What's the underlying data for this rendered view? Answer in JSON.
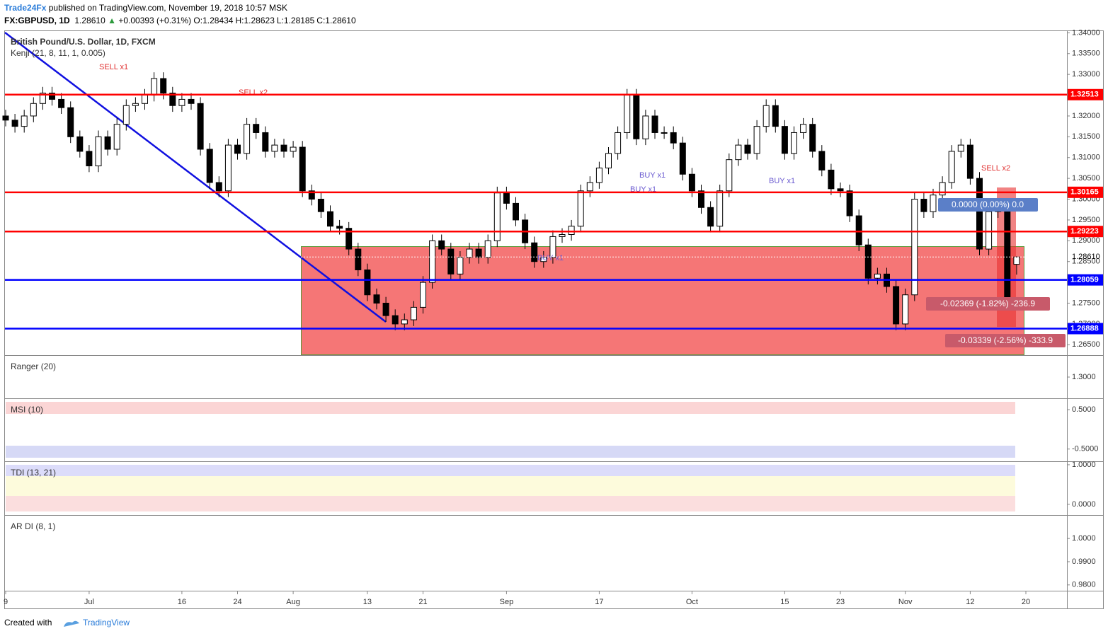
{
  "chart_data": {
    "type": "candlestick",
    "publisher": "Trade24Fx",
    "published": "published on TradingView.com, November 19, 2018 10:57 MSK",
    "symbol": "FX:GBPUSD, 1D",
    "last": "1.28610",
    "change": "+0.00393 (+0.31%)",
    "ohlc_header": [
      {
        "label": "O:",
        "value": "1.28434"
      },
      {
        "label": "H:",
        "value": "1.28623"
      },
      {
        "label": "L:",
        "value": "1.28185"
      },
      {
        "label": "C:",
        "value": "1.28610"
      }
    ],
    "title": "British Pound/U.S. Dollar, 1D, FXCM",
    "indicator": "Kenji (21, 8, 11, 1, 0.005)",
    "signals": [
      "SELL x1",
      "SELL x2",
      "BUY x1",
      "BUY x1",
      "BUY x1",
      "BUY x1",
      "SELL x2"
    ],
    "measures": [
      "0.0000 (0.00%) 0.0",
      "-0.02369 (-1.82%) -236.9",
      "-0.03339 (-2.56%) -333.9"
    ],
    "footer": "Created with",
    "brand": "TradingView",
    "ylim": [
      1.2625,
      1.3404
    ],
    "yticks": [
      {
        "value": 1.34,
        "label": "1.34000"
      },
      {
        "value": 1.335,
        "label": "1.33500"
      },
      {
        "value": 1.33,
        "label": "1.33000"
      },
      {
        "value": 1.325,
        "label": "1.32500"
      },
      {
        "value": 1.32,
        "label": "1.32000"
      },
      {
        "value": 1.315,
        "label": "1.31500"
      },
      {
        "value": 1.31,
        "label": "1.31000"
      },
      {
        "value": 1.305,
        "label": "1.30500"
      },
      {
        "value": 1.3,
        "label": "1.30000"
      },
      {
        "value": 1.295,
        "label": "1.29500"
      },
      {
        "value": 1.29,
        "label": "1.29000"
      },
      {
        "value": 1.285,
        "label": "1.28500"
      },
      {
        "value": 1.28,
        "label": "1.28000"
      },
      {
        "value": 1.275,
        "label": "1.27500"
      },
      {
        "value": 1.27,
        "label": "1.27000"
      },
      {
        "value": 1.265,
        "label": "1.26500"
      }
    ],
    "levels": [
      {
        "value": 1.32513,
        "label": "1.32513",
        "color": "#ff0000"
      },
      {
        "value": 1.30165,
        "label": "1.30165",
        "color": "#ff0000"
      },
      {
        "value": 1.29223,
        "label": "1.29223",
        "color": "#ff0000"
      },
      {
        "value": 1.28059,
        "label": "1.28059",
        "color": "#0000ff"
      },
      {
        "value": 1.26888,
        "label": "1.26888",
        "color": "#0000ff"
      }
    ],
    "last_price": {
      "value": 1.2861,
      "label": "1.28610"
    },
    "categories": [
      "9",
      null,
      null,
      null,
      null,
      null,
      null,
      null,
      null,
      "Jul",
      null,
      null,
      null,
      null,
      null,
      null,
      null,
      null,
      null,
      "16",
      null,
      null,
      null,
      null,
      null,
      "24",
      null,
      null,
      null,
      null,
      null,
      "Aug",
      null,
      null,
      null,
      null,
      null,
      null,
      null,
      "13",
      null,
      null,
      null,
      null,
      null,
      "21",
      null,
      null,
      null,
      null,
      null,
      null,
      null,
      null,
      "Sep",
      null,
      null,
      null,
      null,
      null,
      null,
      null,
      null,
      null,
      "17",
      null,
      null,
      null,
      null,
      null,
      null,
      null,
      null,
      null,
      "Oct",
      null,
      null,
      null,
      null,
      null,
      null,
      null,
      null,
      null,
      "15",
      null,
      null,
      null,
      null,
      null,
      "23",
      null,
      null,
      null,
      null,
      null,
      null,
      "Nov",
      null,
      null,
      null,
      null,
      null,
      null,
      "12",
      null,
      null,
      null,
      null,
      null,
      "20"
    ],
    "ohlc": [
      [
        1.32,
        1.3215,
        1.3175,
        1.319
      ],
      [
        1.319,
        1.3205,
        1.316,
        1.3175
      ],
      [
        1.3175,
        1.3215,
        1.316,
        1.32
      ],
      [
        1.32,
        1.3245,
        1.3185,
        1.323
      ],
      [
        1.323,
        1.327,
        1.3215,
        1.3255
      ],
      [
        1.3255,
        1.327,
        1.3225,
        1.324
      ],
      [
        1.324,
        1.3255,
        1.3205,
        1.322
      ],
      [
        1.322,
        1.3235,
        1.3135,
        1.315
      ],
      [
        1.315,
        1.3165,
        1.31,
        1.3115
      ],
      [
        1.3115,
        1.313,
        1.3065,
        1.308
      ],
      [
        1.308,
        1.3165,
        1.3065,
        1.315
      ],
      [
        1.315,
        1.3165,
        1.3105,
        1.312
      ],
      [
        1.312,
        1.3195,
        1.3105,
        1.318
      ],
      [
        1.318,
        1.324,
        1.3165,
        1.3225
      ],
      [
        1.3225,
        1.3245,
        1.321,
        1.323
      ],
      [
        1.323,
        1.3265,
        1.3215,
        1.325
      ],
      [
        1.325,
        1.3305,
        1.3235,
        1.329
      ],
      [
        1.329,
        1.3305,
        1.324,
        1.3255
      ],
      [
        1.3255,
        1.327,
        1.321,
        1.3225
      ],
      [
        1.3225,
        1.3255,
        1.321,
        1.324
      ],
      [
        1.324,
        1.3255,
        1.3215,
        1.323
      ],
      [
        1.323,
        1.3245,
        1.3105,
        1.312
      ],
      [
        1.312,
        1.3135,
        1.3025,
        1.304
      ],
      [
        1.304,
        1.3055,
        1.3005,
        1.302
      ],
      [
        1.302,
        1.3145,
        1.3005,
        1.313
      ],
      [
        1.313,
        1.3145,
        1.3095,
        1.311
      ],
      [
        1.311,
        1.3195,
        1.3095,
        1.318
      ],
      [
        1.318,
        1.3195,
        1.3145,
        1.316
      ],
      [
        1.316,
        1.3175,
        1.31,
        1.3115
      ],
      [
        1.3115,
        1.3145,
        1.31,
        1.313
      ],
      [
        1.313,
        1.3145,
        1.31,
        1.3115
      ],
      [
        1.3115,
        1.314,
        1.31,
        1.3125
      ],
      [
        1.3125,
        1.314,
        1.3005,
        1.302
      ],
      [
        1.302,
        1.3035,
        1.2985,
        1.3
      ],
      [
        1.3,
        1.3015,
        1.2955,
        1.297
      ],
      [
        1.297,
        1.2985,
        1.292,
        1.2935
      ],
      [
        1.2935,
        1.295,
        1.2915,
        1.293
      ],
      [
        1.293,
        1.2945,
        1.2865,
        1.288
      ],
      [
        1.288,
        1.2895,
        1.2815,
        1.283
      ],
      [
        1.283,
        1.2845,
        1.2755,
        1.277
      ],
      [
        1.277,
        1.2785,
        1.2735,
        1.275
      ],
      [
        1.275,
        1.2765,
        1.2705,
        1.272
      ],
      [
        1.272,
        1.2735,
        1.2685,
        1.27
      ],
      [
        1.27,
        1.2725,
        1.2685,
        1.271
      ],
      [
        1.271,
        1.2755,
        1.2695,
        1.274
      ],
      [
        1.274,
        1.2815,
        1.2725,
        1.28
      ],
      [
        1.28,
        1.2915,
        1.2785,
        1.29
      ],
      [
        1.29,
        1.2915,
        1.2865,
        1.288
      ],
      [
        1.288,
        1.2895,
        1.2805,
        1.282
      ],
      [
        1.282,
        1.2875,
        1.2805,
        1.286
      ],
      [
        1.286,
        1.2895,
        1.2845,
        1.288
      ],
      [
        1.288,
        1.2895,
        1.2845,
        1.286
      ],
      [
        1.286,
        1.2915,
        1.2845,
        1.29
      ],
      [
        1.29,
        1.303,
        1.2885,
        1.3015
      ],
      [
        1.3015,
        1.303,
        1.2975,
        1.299
      ],
      [
        1.299,
        1.3005,
        1.2935,
        1.295
      ],
      [
        1.295,
        1.2965,
        1.288,
        1.2895
      ],
      [
        1.2895,
        1.291,
        1.2835,
        1.285
      ],
      [
        1.285,
        1.2875,
        1.2835,
        1.286
      ],
      [
        1.286,
        1.2925,
        1.2845,
        1.291
      ],
      [
        1.291,
        1.293,
        1.2895,
        1.2915
      ],
      [
        1.2915,
        1.295,
        1.29,
        1.2935
      ],
      [
        1.2935,
        1.3035,
        1.292,
        1.302
      ],
      [
        1.302,
        1.3055,
        1.3005,
        1.304
      ],
      [
        1.304,
        1.309,
        1.3025,
        1.3075
      ],
      [
        1.3075,
        1.3125,
        1.306,
        1.311
      ],
      [
        1.311,
        1.3175,
        1.3095,
        1.316
      ],
      [
        1.316,
        1.3265,
        1.3145,
        1.325
      ],
      [
        1.325,
        1.3265,
        1.313,
        1.3145
      ],
      [
        1.3145,
        1.3215,
        1.313,
        1.32
      ],
      [
        1.32,
        1.3215,
        1.3145,
        1.316
      ],
      [
        1.316,
        1.3175,
        1.3145,
        1.316
      ],
      [
        1.316,
        1.3175,
        1.312,
        1.3135
      ],
      [
        1.3135,
        1.315,
        1.3045,
        1.306
      ],
      [
        1.306,
        1.3075,
        1.3005,
        1.302
      ],
      [
        1.302,
        1.3035,
        1.2965,
        1.298
      ],
      [
        1.298,
        1.2995,
        1.292,
        1.2935
      ],
      [
        1.2935,
        1.3035,
        1.292,
        1.302
      ],
      [
        1.302,
        1.311,
        1.3005,
        1.3095
      ],
      [
        1.3095,
        1.3145,
        1.308,
        1.313
      ],
      [
        1.313,
        1.3145,
        1.3095,
        1.311
      ],
      [
        1.311,
        1.319,
        1.3095,
        1.3175
      ],
      [
        1.3175,
        1.324,
        1.316,
        1.3225
      ],
      [
        1.3225,
        1.324,
        1.316,
        1.3175
      ],
      [
        1.3175,
        1.319,
        1.3095,
        1.311
      ],
      [
        1.311,
        1.3175,
        1.3095,
        1.316
      ],
      [
        1.316,
        1.3195,
        1.3145,
        1.318
      ],
      [
        1.318,
        1.3195,
        1.31,
        1.3115
      ],
      [
        1.3115,
        1.313,
        1.3055,
        1.307
      ],
      [
        1.307,
        1.3085,
        1.301,
        1.3025
      ],
      [
        1.3025,
        1.304,
        1.3005,
        1.302
      ],
      [
        1.302,
        1.3035,
        1.2945,
        1.296
      ],
      [
        1.296,
        1.2975,
        1.2875,
        1.289
      ],
      [
        1.289,
        1.2905,
        1.2795,
        1.281
      ],
      [
        1.281,
        1.2835,
        1.2795,
        1.282
      ],
      [
        1.282,
        1.2835,
        1.2775,
        1.279
      ],
      [
        1.279,
        1.2805,
        1.2685,
        1.27
      ],
      [
        1.27,
        1.2785,
        1.2685,
        1.277
      ],
      [
        1.277,
        1.3015,
        1.2755,
        1.3
      ],
      [
        1.3,
        1.3015,
        1.2955,
        1.297
      ],
      [
        1.297,
        1.3025,
        1.2955,
        1.301
      ],
      [
        1.301,
        1.3055,
        1.2995,
        1.304
      ],
      [
        1.304,
        1.313,
        1.3025,
        1.3115
      ],
      [
        1.3115,
        1.3145,
        1.31,
        1.313
      ],
      [
        1.313,
        1.3145,
        1.3035,
        1.305
      ],
      [
        1.305,
        1.3065,
        1.2865,
        1.288
      ],
      [
        1.288,
        1.2985,
        1.2865,
        1.297
      ],
      [
        1.297,
        1.2995,
        1.2955,
        1.298
      ],
      [
        1.298,
        1.2995,
        1.2745,
        1.276
      ],
      [
        1.28434,
        1.28623,
        1.28185,
        1.2861
      ],
      null
    ],
    "panels": [
      {
        "title": "Ranger (20)",
        "ylim": [
          1.29,
          1.31
        ],
        "yticks": [
          {
            "value": 1.3,
            "label": "1.3000"
          }
        ]
      },
      {
        "title": "MSI (10)",
        "ylim": [
          -0.81,
          0.77
        ],
        "yticks": [
          {
            "value": 0.5,
            "label": "0.5000"
          },
          {
            "value": -0.5,
            "label": "-0.5000"
          }
        ]
      },
      {
        "title": "TDI (13, 21)",
        "ylim": [
          -0.27,
          1.07
        ],
        "yticks": [
          {
            "value": 1,
            "label": "1.0000"
          },
          {
            "value": 0,
            "label": "0.0000"
          }
        ]
      },
      {
        "title": "AR DI (8, 1)",
        "ylim": [
          0.9775,
          1.0098
        ],
        "yticks": [
          {
            "value": 1,
            "label": "1.0000"
          },
          {
            "value": 0.99,
            "label": "0.9900"
          },
          {
            "value": 0.98,
            "label": "0.9800"
          }
        ]
      }
    ]
  }
}
